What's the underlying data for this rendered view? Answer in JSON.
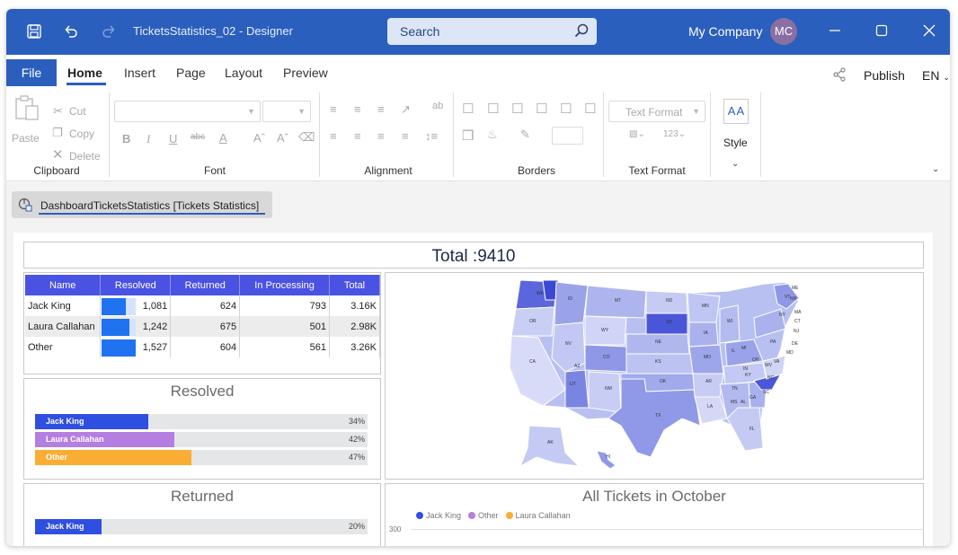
{
  "titlebar": {
    "doc_title": "TicketsStatistics_02 - Designer",
    "search_placeholder": "Search",
    "company": "My Company",
    "avatar_initials": "MC"
  },
  "menu": {
    "file": "File",
    "tabs": [
      "Home",
      "Insert",
      "Page",
      "Layout",
      "Preview"
    ],
    "publish": "Publish",
    "language": "EN"
  },
  "ribbon": {
    "clipboard": {
      "label": "Clipboard",
      "paste": "Paste",
      "cut": "Cut",
      "copy": "Copy",
      "delete": "Delete"
    },
    "font": {
      "label": "Font"
    },
    "alignment": {
      "label": "Alignment"
    },
    "borders": {
      "label": "Borders"
    },
    "text_format": {
      "label": "Text Format",
      "dropdown": "Text Format"
    },
    "style": {
      "label": "Style"
    }
  },
  "document_tab": {
    "label": "DashboardTicketsStatistics [Tickets Statistics]"
  },
  "dashboard": {
    "total_title": "Total :9410",
    "grid": {
      "columns": [
        "Name",
        "Resolved",
        "Returned",
        "In Processing",
        "Total"
      ],
      "rows": [
        {
          "name": "Jack King",
          "resolved": "1,081",
          "resolved_fraction": 0.71,
          "returned": "624",
          "in_processing": "793",
          "total": "3.16K"
        },
        {
          "name": "Laura Callahan",
          "resolved": "1,242",
          "resolved_fraction": 0.81,
          "returned": "675",
          "in_processing": "501",
          "total": "2.98K"
        },
        {
          "name": "Other",
          "resolved": "1,527",
          "resolved_fraction": 1.0,
          "returned": "604",
          "in_processing": "561",
          "total": "3.26K"
        }
      ]
    },
    "resolved_chart": {
      "title": "Resolved",
      "bars": [
        {
          "label": "Jack King",
          "percent": 34,
          "pct_text": "34%",
          "color": "#2f4fe0"
        },
        {
          "label": "Laura Callahan",
          "percent": 42,
          "pct_text": "42%",
          "color": "#b47fe0"
        },
        {
          "label": "Other",
          "percent": 47,
          "pct_text": "47%",
          "color": "#f9ad32"
        }
      ]
    },
    "returned_chart": {
      "title": "Returned",
      "bars": [
        {
          "label": "Jack King",
          "percent": 20,
          "pct_text": "20%",
          "color": "#2f4fe0"
        }
      ]
    },
    "october_chart": {
      "title": "All Tickets in October",
      "legend": [
        {
          "label": "Jack King",
          "color": "#2f4fe0"
        },
        {
          "label": "Other",
          "color": "#b47fe0"
        },
        {
          "label": "Laura Callahan",
          "color": "#f9ad32"
        }
      ],
      "y_tick": "300"
    },
    "map": {
      "state_labels": [
        "WA",
        "OR",
        "CA",
        "ID",
        "NV",
        "MT",
        "WY",
        "UT",
        "AZ",
        "CO",
        "NM",
        "ND",
        "SD",
        "NE",
        "KS",
        "OK",
        "TX",
        "MN",
        "IA",
        "MO",
        "AR",
        "LA",
        "WI",
        "IL",
        "MI",
        "IN",
        "OH",
        "KY",
        "TN",
        "MS",
        "AL",
        "GA",
        "FL",
        "SC",
        "NC",
        "VA",
        "WV",
        "PA",
        "NY",
        "VT",
        "NH",
        "ME",
        "MA",
        "CT",
        "NJ",
        "DE",
        "MD",
        "AK",
        "HI"
      ]
    }
  }
}
